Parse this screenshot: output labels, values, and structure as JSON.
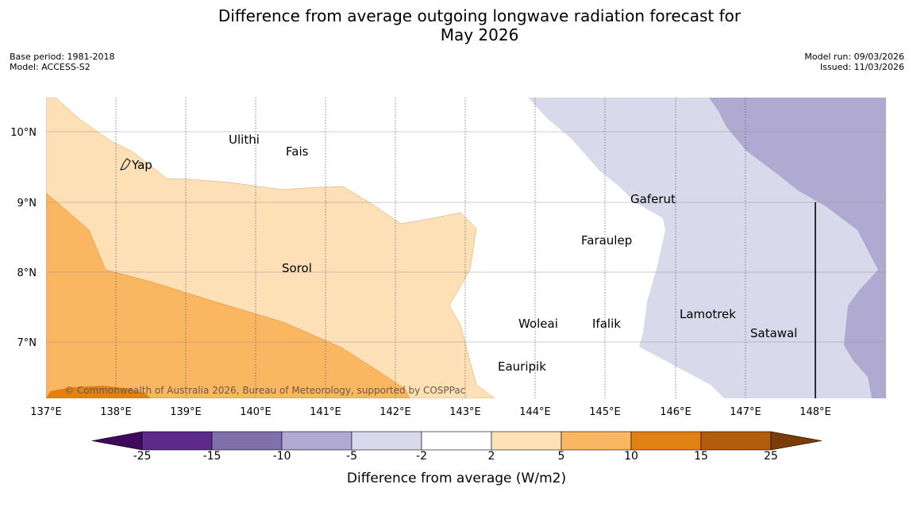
{
  "header": {
    "title_line1": "Difference from average outgoing longwave radiation forecast for",
    "title_line2": "May 2026",
    "base_period": "Base period: 1981-2018",
    "model": "Model: ACCESS-S2",
    "model_run": "Model run: 09/03/2026",
    "issued": "Issued: 11/03/2026"
  },
  "map": {
    "lon_labels": [
      "137°E",
      "138°E",
      "139°E",
      "140°E",
      "141°E",
      "142°E",
      "143°E",
      "144°E",
      "145°E",
      "146°E",
      "147°E",
      "148°E"
    ],
    "lat_labels": [
      "10°N",
      "9°N",
      "8°N",
      "7°N"
    ],
    "places": [
      "Ulithi",
      "Fais",
      "Yap",
      "Gaferut",
      "Faraulep",
      "Sorol",
      "Lamotrek",
      "Woleai",
      "Ifalik",
      "Satawal",
      "Eauripik"
    ],
    "copyright": "© Commonwealth of Australia 2026, Bureau of Meteorology, supported by COSPPac"
  },
  "colorbar": {
    "title": "Difference from average (W/m2)",
    "ticks": [
      "-25",
      "-15",
      "-10",
      "-5",
      "-2",
      "2",
      "5",
      "10",
      "15",
      "25"
    ],
    "colors": [
      "#3f0a5e",
      "#5b2a8a",
      "#7f6faa",
      "#b0a9d1",
      "#d8d9ea",
      "#ffffff",
      "#fde0b6",
      "#fab660",
      "#e08314",
      "#b25c0c",
      "#7a3d0a"
    ]
  },
  "colors": {
    "light_orange": "#fde0b6",
    "medium_orange": "#fab660",
    "dark_orange": "#e08314",
    "light_purple": "#d8d9ea",
    "medium_purple": "#b0a9d1"
  }
}
